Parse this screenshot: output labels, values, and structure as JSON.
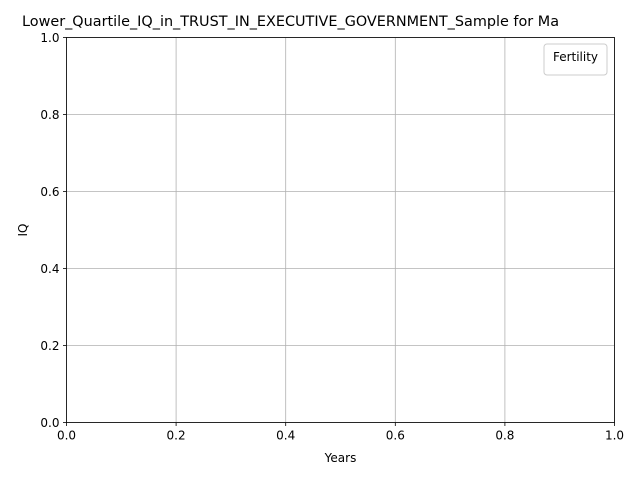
{
  "chart_data": {
    "type": "line",
    "title": "Lower_Quartile_IQ_in_TRUST_IN_EXECUTIVE_GOVERNMENT_Sample for Ma",
    "xlabel": "Years",
    "ylabel": "IQ",
    "xlim": [
      0.0,
      1.0
    ],
    "ylim": [
      0.0,
      1.0
    ],
    "x_ticks": [
      "0.0",
      "0.2",
      "0.4",
      "0.6",
      "0.8",
      "1.0"
    ],
    "y_ticks": [
      "0.0",
      "0.2",
      "0.4",
      "0.6",
      "0.8",
      "1.0"
    ],
    "grid": true,
    "legend": {
      "title": "Fertility",
      "placement": "top-right",
      "entries": []
    },
    "series": [],
    "colors": {
      "grid": "#b0b0b0",
      "axes": "#000000",
      "legend_border": "#cccccc"
    }
  }
}
